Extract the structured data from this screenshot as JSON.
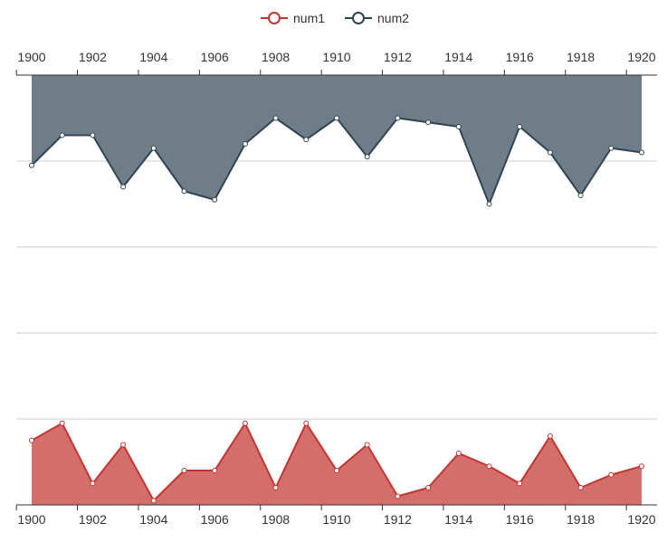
{
  "chart_data": {
    "type": "area",
    "legend": {
      "position": "top-center",
      "items": [
        {
          "name": "num1",
          "color": "#c23531"
        },
        {
          "name": "num2",
          "color": "#2f4554"
        }
      ]
    },
    "x": [
      1900,
      1901,
      1902,
      1903,
      1904,
      1905,
      1906,
      1907,
      1908,
      1909,
      1910,
      1911,
      1912,
      1913,
      1914,
      1915,
      1916,
      1917,
      1918,
      1919,
      1920
    ],
    "x_tick_labels": [
      "1900",
      "1902",
      "1904",
      "1906",
      "1908",
      "1910",
      "1912",
      "1914",
      "1916",
      "1918",
      "1920"
    ],
    "top_axis_labels": [
      "1900",
      "1902",
      "1904",
      "1906",
      "1908",
      "1910",
      "1912",
      "1914",
      "1916",
      "1918",
      "1920"
    ],
    "bottom_axis_labels": [
      "1900",
      "1902",
      "1904",
      "1906",
      "1908",
      "1910",
      "1912",
      "1914",
      "1916",
      "1918",
      "1920"
    ],
    "grid": true,
    "series": [
      {
        "name": "num1",
        "color": "#c23531",
        "fill": "#d46e6b",
        "axis": "bottom",
        "values": [
          15,
          19,
          5,
          14,
          1,
          8,
          8,
          19,
          4,
          19,
          8,
          14,
          2,
          4,
          12,
          9,
          5,
          16,
          4,
          7,
          9
        ]
      },
      {
        "name": "num2",
        "color": "#2f4554",
        "fill": "#6e7d87",
        "axis": "top",
        "inverted": true,
        "values": [
          21,
          14,
          14,
          26,
          17,
          27,
          29,
          16,
          10,
          15,
          10,
          19,
          10,
          11,
          12,
          30,
          12,
          18,
          28,
          17,
          18
        ]
      }
    ]
  }
}
